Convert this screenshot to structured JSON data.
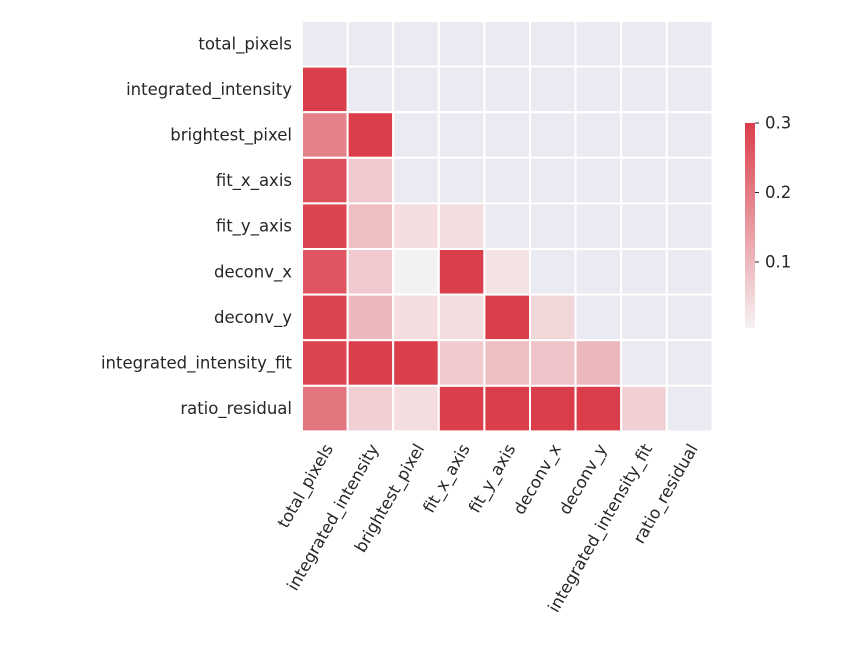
{
  "chart_data": {
    "type": "heatmap",
    "title": "",
    "xlabel": "",
    "ylabel": "",
    "mask": "upper-triangle",
    "rows": [
      "total_pixels",
      "integrated_intensity",
      "brightest_pixel",
      "fit_x_axis",
      "fit_y_axis",
      "deconv_x",
      "deconv_y",
      "integrated_intensity_fit",
      "ratio_residual"
    ],
    "columns": [
      "total_pixels",
      "integrated_intensity",
      "brightest_pixel",
      "fit_x_axis",
      "fit_y_axis",
      "deconv_x",
      "deconv_y",
      "integrated_intensity_fit",
      "ratio_residual"
    ],
    "values": [
      [
        null,
        null,
        null,
        null,
        null,
        null,
        null,
        null,
        null
      ],
      [
        0.3,
        null,
        null,
        null,
        null,
        null,
        null,
        null,
        null
      ],
      [
        0.19,
        0.3,
        null,
        null,
        null,
        null,
        null,
        null,
        null
      ],
      [
        0.27,
        0.07,
        null,
        null,
        null,
        null,
        null,
        null,
        null
      ],
      [
        0.29,
        0.09,
        0.04,
        0.04,
        null,
        null,
        null,
        null,
        null
      ],
      [
        0.26,
        0.07,
        0.0,
        0.3,
        0.03,
        null,
        null,
        null,
        null
      ],
      [
        0.29,
        0.1,
        0.04,
        0.04,
        0.3,
        0.05,
        null,
        null,
        null
      ],
      [
        0.29,
        0.3,
        0.3,
        0.07,
        0.09,
        0.08,
        0.1,
        null,
        null
      ],
      [
        0.21,
        0.06,
        0.04,
        0.3,
        0.3,
        0.3,
        0.3,
        0.06,
        null
      ]
    ],
    "colorbar": {
      "min": 0.005,
      "max": 0.3,
      "ticks": [
        0.1,
        0.2,
        0.3
      ],
      "tick_labels": [
        "0.1",
        "0.2",
        "0.3"
      ],
      "low_color": "#f6f2f3",
      "high_color": "#db3e4b"
    },
    "masked_color": "#eaeaf2",
    "near_zero_color": "#f2f2f2",
    "grid_line_color": "#ffffff"
  }
}
